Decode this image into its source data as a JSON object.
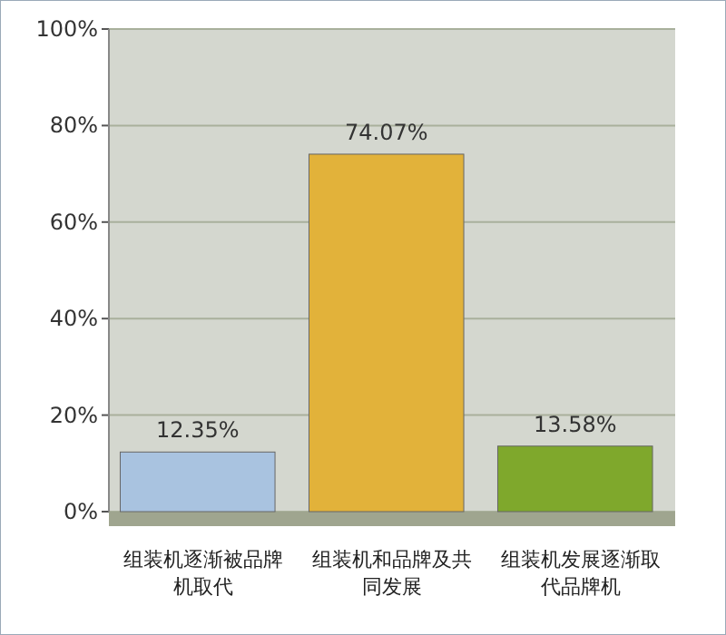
{
  "chart_data": {
    "type": "bar",
    "categories": [
      "组装机逐渐被品牌机取代",
      "组装机和品牌及共同发展",
      "组装机发展逐渐取代品牌机"
    ],
    "values": [
      12.35,
      74.07,
      13.58
    ],
    "colors": [
      "#a9c3e0",
      "#e2b23a",
      "#7fa82c"
    ],
    "value_labels": [
      "12.35%",
      "74.07%",
      "13.58%"
    ],
    "ylim": [
      0,
      100
    ],
    "yticks": [
      {
        "value": 0,
        "label": "0%"
      },
      {
        "value": 20,
        "label": "20%"
      },
      {
        "value": 40,
        "label": "40%"
      },
      {
        "value": 60,
        "label": "60%"
      },
      {
        "value": 80,
        "label": "80%"
      },
      {
        "value": 100,
        "label": "100%"
      }
    ],
    "grid": "y"
  }
}
